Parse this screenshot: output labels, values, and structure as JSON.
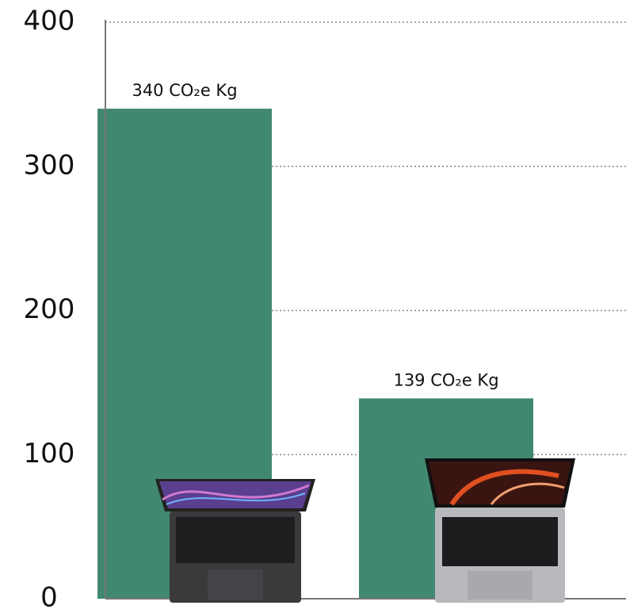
{
  "chart_data": {
    "type": "bar",
    "categories": [
      null,
      null
    ],
    "values": [
      340,
      139
    ],
    "value_labels": [
      "340 CO₂e Kg",
      "139 CO₂e Kg"
    ],
    "color": "#418870",
    "ylim": [
      0,
      400
    ],
    "yticks": [
      0,
      100,
      200,
      300,
      400
    ],
    "grid": true
  }
}
